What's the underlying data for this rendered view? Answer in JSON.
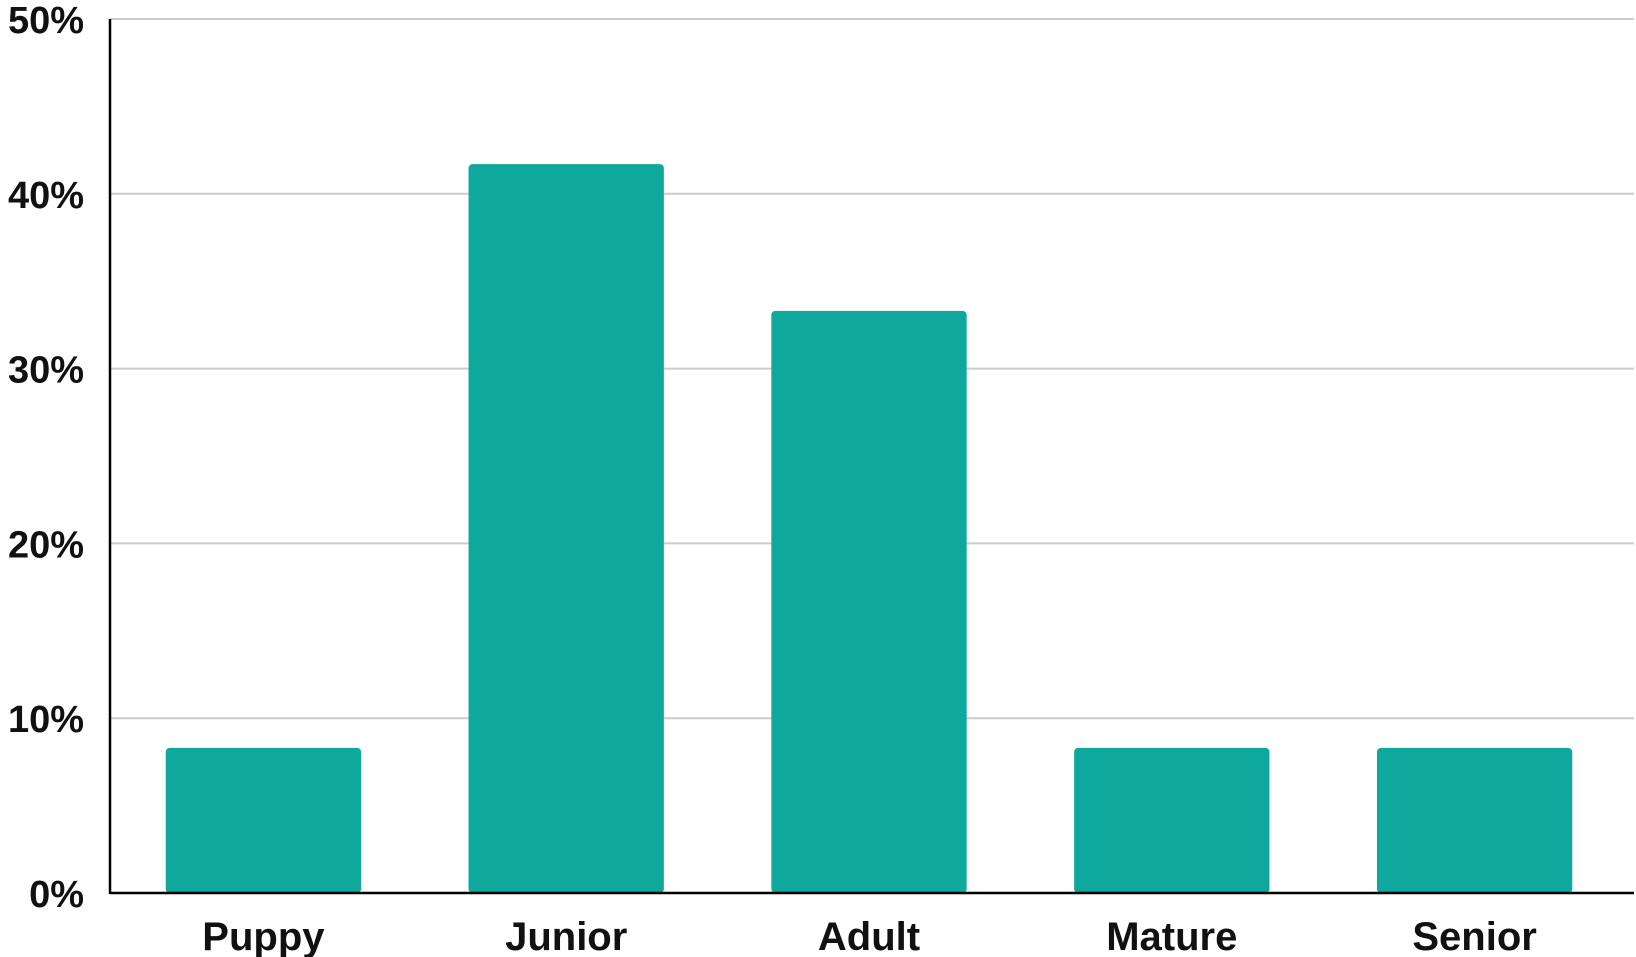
{
  "chart_data": {
    "type": "bar",
    "title": "",
    "xlabel": "",
    "ylabel": "",
    "categories": [
      "Puppy",
      "Junior",
      "Adult",
      "Mature",
      "Senior"
    ],
    "values": [
      8.3,
      41.7,
      33.3,
      8.3,
      8.3
    ],
    "ylim": [
      0,
      50
    ],
    "y_ticks": [
      0,
      10,
      20,
      30,
      40,
      50
    ],
    "y_tick_labels": [
      "0%",
      "10%",
      "20%",
      "30%",
      "40%",
      "50%"
    ],
    "grid": true,
    "legend": "none",
    "bar_color": "#0fa89d",
    "grid_color": "#cccccc",
    "axis_color": "#000000"
  }
}
